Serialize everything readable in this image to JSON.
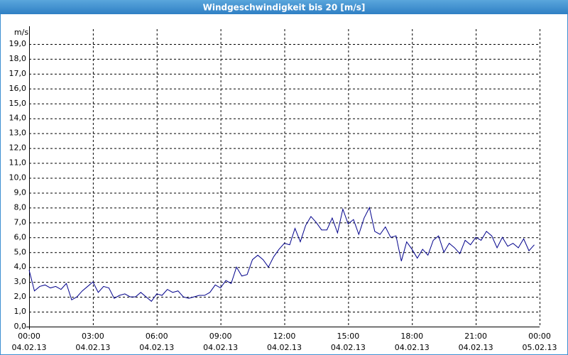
{
  "chart_data": {
    "type": "line",
    "title": "Windgeschwindigkeit bis 20 [m/s]",
    "ylabel": "m/s",
    "xlim": [
      0,
      24
    ],
    "ylim": [
      0,
      20
    ],
    "grid": true,
    "xticks": [
      {
        "value": 0,
        "label": "00:00"
      },
      {
        "value": 3,
        "label": "03:00"
      },
      {
        "value": 6,
        "label": "06:00"
      },
      {
        "value": 9,
        "label": "09:00"
      },
      {
        "value": 12,
        "label": "12:00"
      },
      {
        "value": 15,
        "label": "15:00"
      },
      {
        "value": 18,
        "label": "18:00"
      },
      {
        "value": 21,
        "label": "21:00"
      },
      {
        "value": 24,
        "label": "00:00"
      }
    ],
    "xtick_dates": [
      "04.02.13",
      "04.02.13",
      "04.02.13",
      "04.02.13",
      "04.02.13",
      "04.02.13",
      "04.02.13",
      "04.02.13",
      "05.02.13"
    ],
    "yticks": [
      {
        "value": 0,
        "label": "0,0"
      },
      {
        "value": 1,
        "label": "1,0"
      },
      {
        "value": 2,
        "label": "2,0"
      },
      {
        "value": 3,
        "label": "3,0"
      },
      {
        "value": 4,
        "label": "4,0"
      },
      {
        "value": 5,
        "label": "5,0"
      },
      {
        "value": 6,
        "label": "6,0"
      },
      {
        "value": 7,
        "label": "7,0"
      },
      {
        "value": 8,
        "label": "8,0"
      },
      {
        "value": 9,
        "label": "9,0"
      },
      {
        "value": 10,
        "label": "10,0"
      },
      {
        "value": 11,
        "label": "11,0"
      },
      {
        "value": 12,
        "label": "12,0"
      },
      {
        "value": 13,
        "label": "13,0"
      },
      {
        "value": 14,
        "label": "14,0"
      },
      {
        "value": 15,
        "label": "15,0"
      },
      {
        "value": 16,
        "label": "16,0"
      },
      {
        "value": 17,
        "label": "17,0"
      },
      {
        "value": 18,
        "label": "18,0"
      },
      {
        "value": 19,
        "label": "19,0"
      }
    ],
    "x": [
      0,
      0.25,
      0.5,
      0.75,
      1,
      1.25,
      1.5,
      1.75,
      2,
      2.25,
      2.5,
      2.75,
      3,
      3.25,
      3.5,
      3.75,
      4,
      4.25,
      4.5,
      4.75,
      5,
      5.25,
      5.5,
      5.75,
      6,
      6.25,
      6.5,
      6.75,
      7,
      7.25,
      7.5,
      7.75,
      8,
      8.25,
      8.5,
      8.75,
      9,
      9.25,
      9.5,
      9.75,
      10,
      10.25,
      10.5,
      10.75,
      11,
      11.25,
      11.5,
      11.75,
      12,
      12.25,
      12.5,
      12.75,
      13,
      13.25,
      13.5,
      13.75,
      14,
      14.25,
      14.5,
      14.75,
      15,
      15.25,
      15.5,
      15.75,
      16,
      16.25,
      16.5,
      16.75,
      17,
      17.25,
      17.5,
      17.75,
      18,
      18.25,
      18.5,
      18.75,
      19,
      19.25,
      19.5,
      19.75,
      20,
      20.25,
      20.5,
      20.75,
      21,
      21.25,
      21.5,
      21.75,
      22,
      22.25,
      22.5,
      22.75,
      23,
      23.25,
      23.5,
      23.75
    ],
    "series": [
      {
        "color": "#00008b",
        "values": [
          3.8,
          2.4,
          2.7,
          2.8,
          2.6,
          2.7,
          2.5,
          2.9,
          1.8,
          2.0,
          2.4,
          2.7,
          3.0,
          2.3,
          2.7,
          2.6,
          1.9,
          2.1,
          2.2,
          2.0,
          2.0,
          2.3,
          2.0,
          1.7,
          2.2,
          2.1,
          2.5,
          2.3,
          2.4,
          2.0,
          1.9,
          2.0,
          2.1,
          2.1,
          2.3,
          2.8,
          2.6,
          3.1,
          2.9,
          4.0,
          3.4,
          3.5,
          4.5,
          4.8,
          4.5,
          4.0,
          4.7,
          5.2,
          5.6,
          5.5,
          6.6,
          5.7,
          6.8,
          7.4,
          7.0,
          6.5,
          6.5,
          7.3,
          6.3,
          7.9,
          6.9,
          7.2,
          6.2,
          7.3,
          8.0,
          6.4,
          6.2,
          6.7,
          6.0,
          6.1,
          4.4,
          5.7,
          5.2,
          4.6,
          5.2,
          4.8,
          5.8,
          6.1,
          5.0,
          5.6,
          5.3,
          4.9,
          5.8,
          5.5,
          6.0,
          5.8,
          6.4,
          6.1,
          5.3,
          6.0,
          5.4,
          5.6,
          5.3,
          5.9,
          5.1,
          5.5
        ]
      }
    ]
  }
}
